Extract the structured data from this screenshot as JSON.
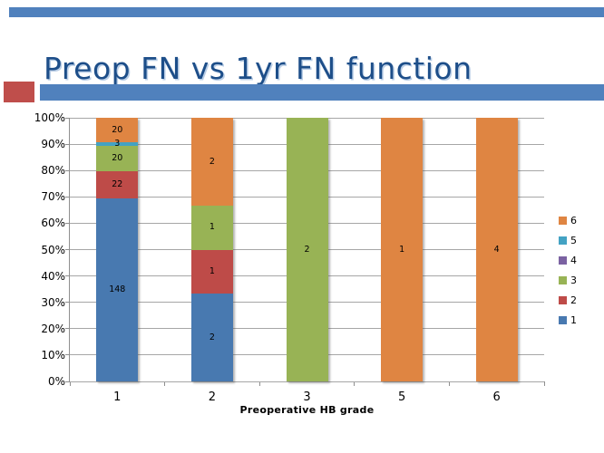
{
  "slide": {
    "title": "Preop FN vs 1yr FN function",
    "title_color": "#1d4e89",
    "accent_red": "#bf4e4b",
    "accent_blue": "#5081bd"
  },
  "chart_data": {
    "type": "bar",
    "subtype": "100-percent-stacked-column",
    "title": "",
    "xlabel": "Preoperative HB grade",
    "ylabel": "",
    "ylim": [
      0,
      100
    ],
    "grid": true,
    "categories": [
      "1",
      "2",
      "3",
      "5",
      "6"
    ],
    "series": [
      {
        "name": "1",
        "color": "#4879b0",
        "values": [
          148,
          2,
          0,
          0,
          0
        ]
      },
      {
        "name": "2",
        "color": "#be4b48",
        "values": [
          22,
          1,
          0,
          0,
          0
        ]
      },
      {
        "name": "3",
        "color": "#98b355",
        "values": [
          20,
          1,
          2,
          0,
          0
        ]
      },
      {
        "name": "4",
        "color": "#7b62a2",
        "values": [
          0,
          0,
          0,
          0,
          0
        ]
      },
      {
        "name": "5",
        "color": "#43a2c3",
        "values": [
          3,
          0,
          0,
          0,
          0
        ]
      },
      {
        "name": "6",
        "color": "#df8542",
        "values": [
          20,
          2,
          0,
          1,
          4
        ]
      }
    ],
    "y_ticks": [
      "0%",
      "10%",
      "20%",
      "30%",
      "40%",
      "50%",
      "60%",
      "70%",
      "80%",
      "90%",
      "100%"
    ],
    "legend": {
      "position": "right",
      "order_top_to_bottom": [
        "6",
        "5",
        "4",
        "3",
        "2",
        "1"
      ]
    }
  }
}
